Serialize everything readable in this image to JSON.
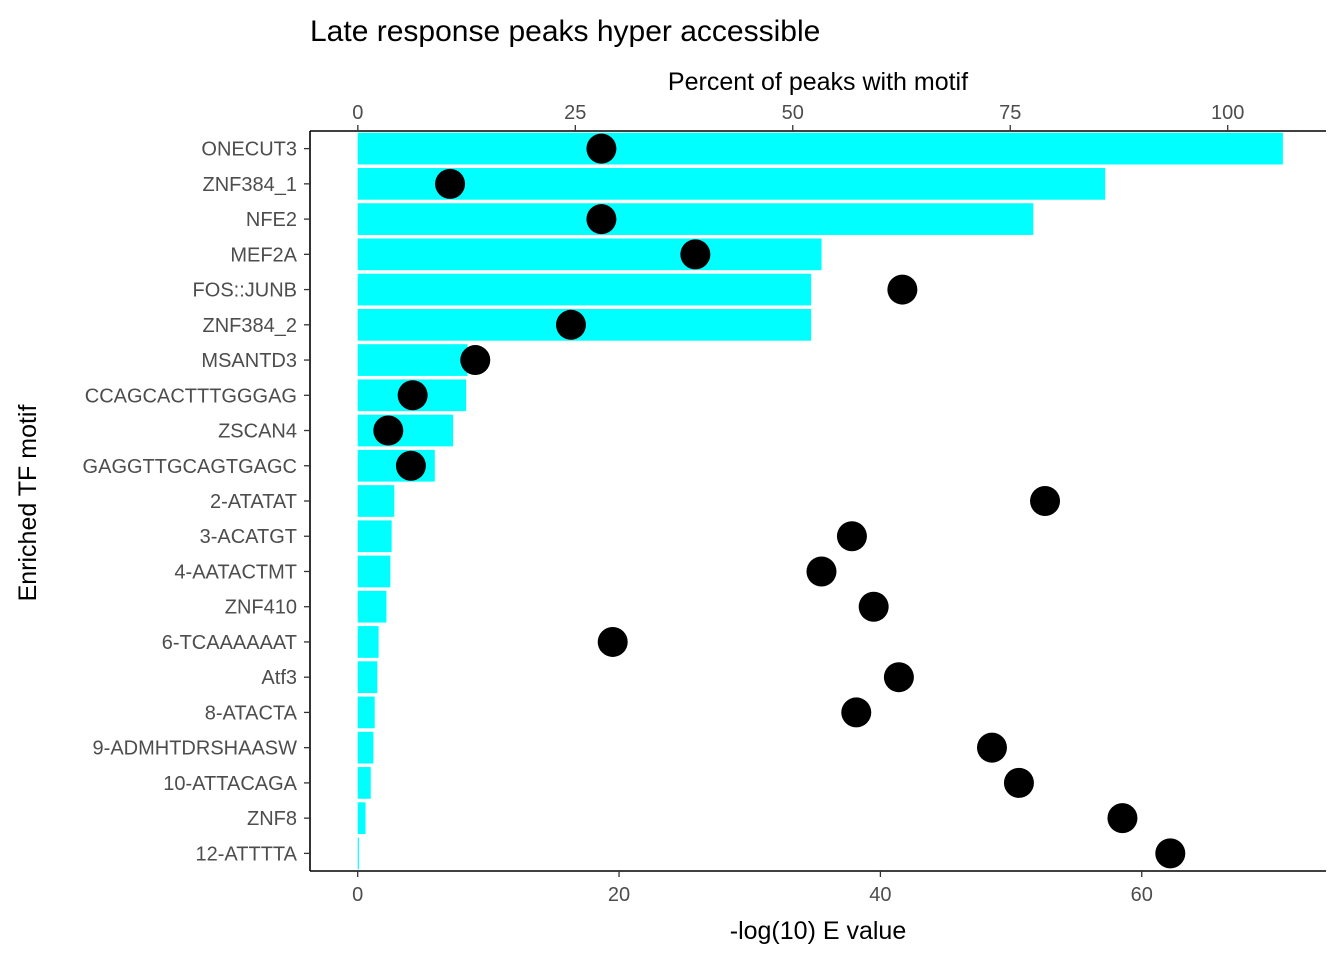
{
  "chart_data": {
    "type": "bar",
    "title": "Late response peaks hyper accessible",
    "ylabel": "Enriched TF motif",
    "categories": [
      "ONECUT3",
      "ZNF384_1",
      "NFE2",
      "MEF2A",
      "FOS::JUNB",
      "ZNF384_2",
      "MSANTD3",
      "CCAGCACTTTGGGAG",
      "ZSCAN4",
      "GAGGTTGCAGTGAGC",
      "2-ATATAT",
      "3-ACATGT",
      "4-AATACTMT",
      "ZNF410",
      "6-TCAAAAAAT",
      "Atf3",
      "8-ATACTA",
      "9-ADMHTDRSHAASW",
      "10-ATTACAGA",
      "ZNF8",
      "12-ATTTTA"
    ],
    "x_bottom": {
      "label": "-log(10) E value",
      "lim": [
        -3.65,
        74.1
      ],
      "ticks": [
        0,
        20,
        40,
        60
      ]
    },
    "x_top": {
      "label": "Percent of peaks with motif",
      "lim": [
        -5.5,
        111.3
      ],
      "ticks": [
        0,
        25,
        50,
        75,
        100
      ]
    },
    "series": [
      {
        "kind": "bar",
        "axis": "bottom",
        "color": "#00FFFF",
        "values": [
          70.8,
          57.2,
          51.7,
          35.5,
          34.7,
          34.7,
          8.4,
          8.3,
          7.3,
          5.9,
          2.8,
          2.6,
          2.5,
          2.2,
          1.6,
          1.5,
          1.3,
          1.2,
          1.0,
          0.6,
          0.05
        ]
      },
      {
        "kind": "point",
        "axis": "top",
        "color": "#000000",
        "values": [
          28.0,
          10.6,
          28.0,
          38.8,
          62.6,
          24.5,
          13.5,
          6.3,
          3.5,
          6.1,
          79.0,
          56.8,
          53.3,
          59.3,
          29.3,
          62.2,
          57.3,
          72.9,
          76.0,
          87.9,
          93.4
        ]
      }
    ],
    "grid": false,
    "legend": "none"
  }
}
